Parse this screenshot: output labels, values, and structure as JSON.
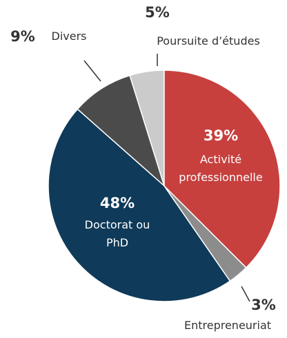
{
  "chart_data": {
    "type": "pie",
    "categories": [
      "Activité professionnelle",
      "Entrepreneuriat",
      "Doctorat ou PhD",
      "Divers",
      "Poursuite d’études"
    ],
    "values": [
      39,
      3,
      48,
      9,
      5
    ],
    "value_labels": [
      "39%",
      "3%",
      "48%",
      "9%",
      "5%"
    ],
    "colors": [
      "#c7403e",
      "#8c8c8c",
      "#0f3a59",
      "#4b4b4b",
      "#cbcbcb"
    ]
  }
}
